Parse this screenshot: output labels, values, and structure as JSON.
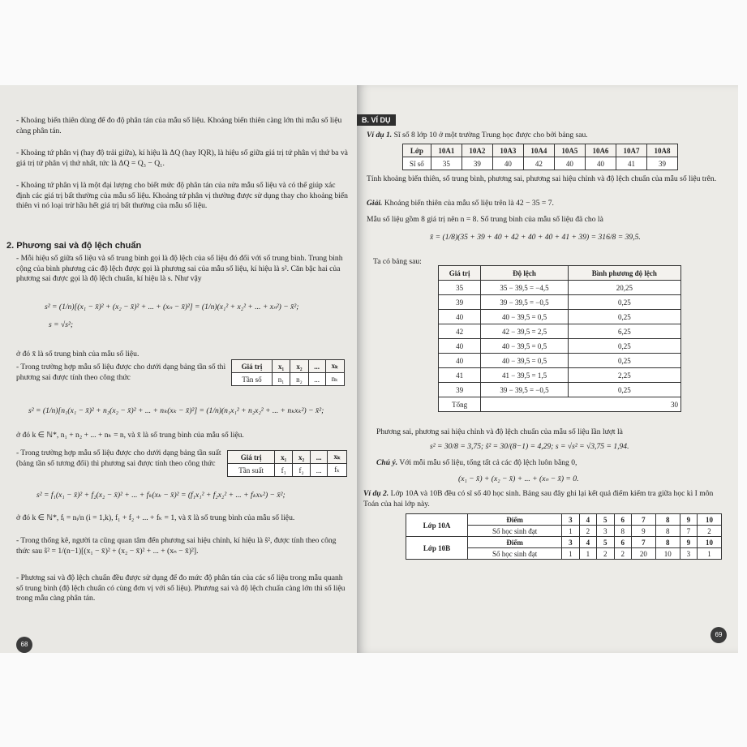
{
  "left_page": {
    "paragraphs": [
      "- Khoảng biến thiên dùng để đo độ phân tán của mẫu số liệu. Khoảng biến thiên càng lớn thì mẫu số liệu càng phân tán.",
      "- Khoảng tứ phân vị (hay độ trải giữa), kí hiệu là ΔQ (hay IQR), là hiệu số giữa giá trị tứ phân vị thứ ba và giá trị tứ phân vị thứ nhất, tức là ΔQ = Q₃ − Q₁.",
      "- Khoảng tứ phân vị là một đại lượng cho biết mức độ phân tán của nửa mẫu số liệu và có thể giúp xác định các giá trị bất thường của mẫu số liệu. Khoảng tứ phân vị thường được sử dụng thay cho khoảng biến thiên vì nó loại trừ hầu hết giá trị bất thường của mẫu số liệu.",
      "- Mỗi hiệu số giữa số liệu và số trung bình gọi là độ lệch của số liệu đó đối với số trung bình. Trung bình cộng của bình phương các độ lệch được gọi là phương sai của mẫu số liệu, kí hiệu là s². Căn bậc hai của phương sai được gọi là độ lệch chuẩn, kí hiệu là s. Như vậy",
      "ở đó x̄ là số trung bình của mẫu số liệu.",
      "- Trong trường hợp mẫu số liệu được cho dưới dạng bảng tần số thì phương sai được tính theo công thức",
      "ở đó k ∈ ℕ*, n₁ + n₂ + ... + nₖ = n, và x̄ là số trung bình của mẫu số liệu.",
      "- Trong trường hợp mẫu số liệu được cho dưới dạng bảng tần suất (bảng tần số tương đối) thì phương sai được tính theo công thức",
      "ở đó k ∈ ℕ*, fᵢ = nᵢ/n (i = 1,k), f₁ + f₂ + ... + fₖ = 1, và x̄ là số trung bình của mẫu số liệu.",
      "- Trong thống kê, người ta cũng quan tâm đến phương sai hiệu chỉnh, kí hiệu là ŝ², được tính theo công thức sau ŝ² = 1/(n−1)[(x₁ − x̄)² + (x₂ − x̄)² + ... + (xₙ − x̄)²].",
      "- Phương sai và độ lệch chuẩn đều được sử dụng để đo mức độ phân tán của các số liệu trong mẫu quanh số trung bình (độ lệch chuẩn có cùng đơn vị với số liệu). Phương sai và độ lệch chuẩn càng lớn thì số liệu trong mẫu càng phân tán."
    ],
    "heading": "2. Phương sai và độ lệch chuẩn",
    "formulas": [
      "s² = (1/n)[(x₁ − x̄)² + (x₂ − x̄)² + ... + (xₙ − x̄)²] = (1/n)(x₁² + x₂² + ... + xₙ²) − x̄²;",
      "s = √s²;",
      "s² = (1/n)[n₁(x₁ − x̄)² + n₂(x₂ − x̄)² + ... + nₖ(xₖ − x̄)²] = (1/n)(n₁x₁² + n₂x₂² + ... + nₖxₖ²) − x̄²;",
      "s² = f₁(x₁ − x̄)² + f₂(x₂ − x̄)² + ... + fₖ(xₖ − x̄)² = (f₁x₁² + f₂x₂² + ... + fₖxₖ²) − x̄²;"
    ],
    "table_frequency": {
      "rows": [
        [
          "Giá trị",
          "x₁",
          "x₂",
          "...",
          "xₖ"
        ],
        [
          "Tần số",
          "n₁",
          "n₂",
          "...",
          "nₖ"
        ]
      ]
    },
    "table_relative": {
      "rows": [
        [
          "Giá trị",
          "x₁",
          "x₂",
          "...",
          "xₖ"
        ],
        [
          "Tần suất",
          "f₁",
          "f₂",
          "...",
          "fₖ"
        ]
      ]
    },
    "page_number": "68"
  },
  "right_page": {
    "section": "B. VÍ DỤ",
    "example1": {
      "label": "Ví dụ 1.",
      "text": "Sĩ số 8 lớp 10 ở một trường Trung học được cho bởi bảng sau."
    },
    "table_classes": {
      "rows": [
        [
          "Lớp",
          "10A1",
          "10A2",
          "10A3",
          "10A4",
          "10A5",
          "10A6",
          "10A7",
          "10A8"
        ],
        [
          "Sĩ số",
          "35",
          "39",
          "40",
          "42",
          "40",
          "40",
          "41",
          "39"
        ]
      ]
    },
    "question": "Tính khoảng biến thiên, số trung bình, phương sai, phương sai hiệu chỉnh và độ lệch chuẩn của mẫu số liệu trên.",
    "solution": {
      "label": "Giải.",
      "text": "Khoảng biến thiên của mẫu số liệu trên là 42 − 35 = 7."
    },
    "mean_text": "Mẫu số liệu gồm 8 giá trị nên n = 8. Số trung bình của mẫu số liệu đã cho là",
    "mean_formula": "x̄ = (1/8)(35 + 39 + 40 + 42 + 40 + 40 + 41 + 39) = 316/8 = 39,5.",
    "table_intro": "Ta có bảng sau:",
    "table_deviation": {
      "rows": [
        [
          "Giá trị",
          "Độ lệch",
          "Bình phương độ lệch"
        ],
        [
          "35",
          "35 − 39,5 = −4,5",
          "20,25"
        ],
        [
          "39",
          "39 − 39,5 = −0,5",
          "0,25"
        ],
        [
          "40",
          "40 − 39,5 = 0,5",
          "0,25"
        ],
        [
          "42",
          "42 − 39,5 = 2,5",
          "6,25"
        ],
        [
          "40",
          "40 − 39,5 = 0,5",
          "0,25"
        ],
        [
          "40",
          "40 − 39,5 = 0,5",
          "0,25"
        ],
        [
          "41",
          "41 − 39,5 = 1,5",
          "2,25"
        ],
        [
          "39",
          "39 − 39,5 = −0,5",
          "0,25"
        ],
        [
          "Tổng",
          "30"
        ]
      ]
    },
    "result_text": "Phương sai, phương sai hiệu chỉnh và độ lệch chuẩn của mẫu số liệu lần lượt là",
    "result_formula": "s² = 30/8 = 3,75; ŝ² = 30/(8−1) = 4,29; s = √s² = √3,75 = 1,94.",
    "note": {
      "label": "Chú ý.",
      "text": "Với mỗi mẫu số liệu, tổng tất cả các độ lệch luôn bằng 0,"
    },
    "note_formula": "(x₁ − x̄) + (x₂ − x̄) + ... + (xₙ − x̄) = 0.",
    "example2": {
      "label": "Ví dụ 2.",
      "text": "Lớp 10A và 10B đều có sĩ số 40 học sinh. Bảng sau đây ghi lại kết quả điểm kiểm tra giữa học kì I môn Toán của hai lớp này."
    },
    "table_scores": {
      "groups": [
        {
          "label": "Lớp 10A",
          "rows": [
            [
              "Điểm",
              "3",
              "4",
              "5",
              "6",
              "7",
              "8",
              "9",
              "10"
            ],
            [
              "Số học sinh đạt",
              "1",
              "2",
              "3",
              "8",
              "9",
              "8",
              "7",
              "2"
            ]
          ]
        },
        {
          "label": "Lớp 10B",
          "rows": [
            [
              "Điểm",
              "3",
              "4",
              "5",
              "6",
              "7",
              "8",
              "9",
              "10"
            ],
            [
              "Số học sinh đạt",
              "1",
              "1",
              "2",
              "2",
              "20",
              "10",
              "3",
              "1"
            ]
          ]
        }
      ]
    },
    "page_number": "69"
  }
}
